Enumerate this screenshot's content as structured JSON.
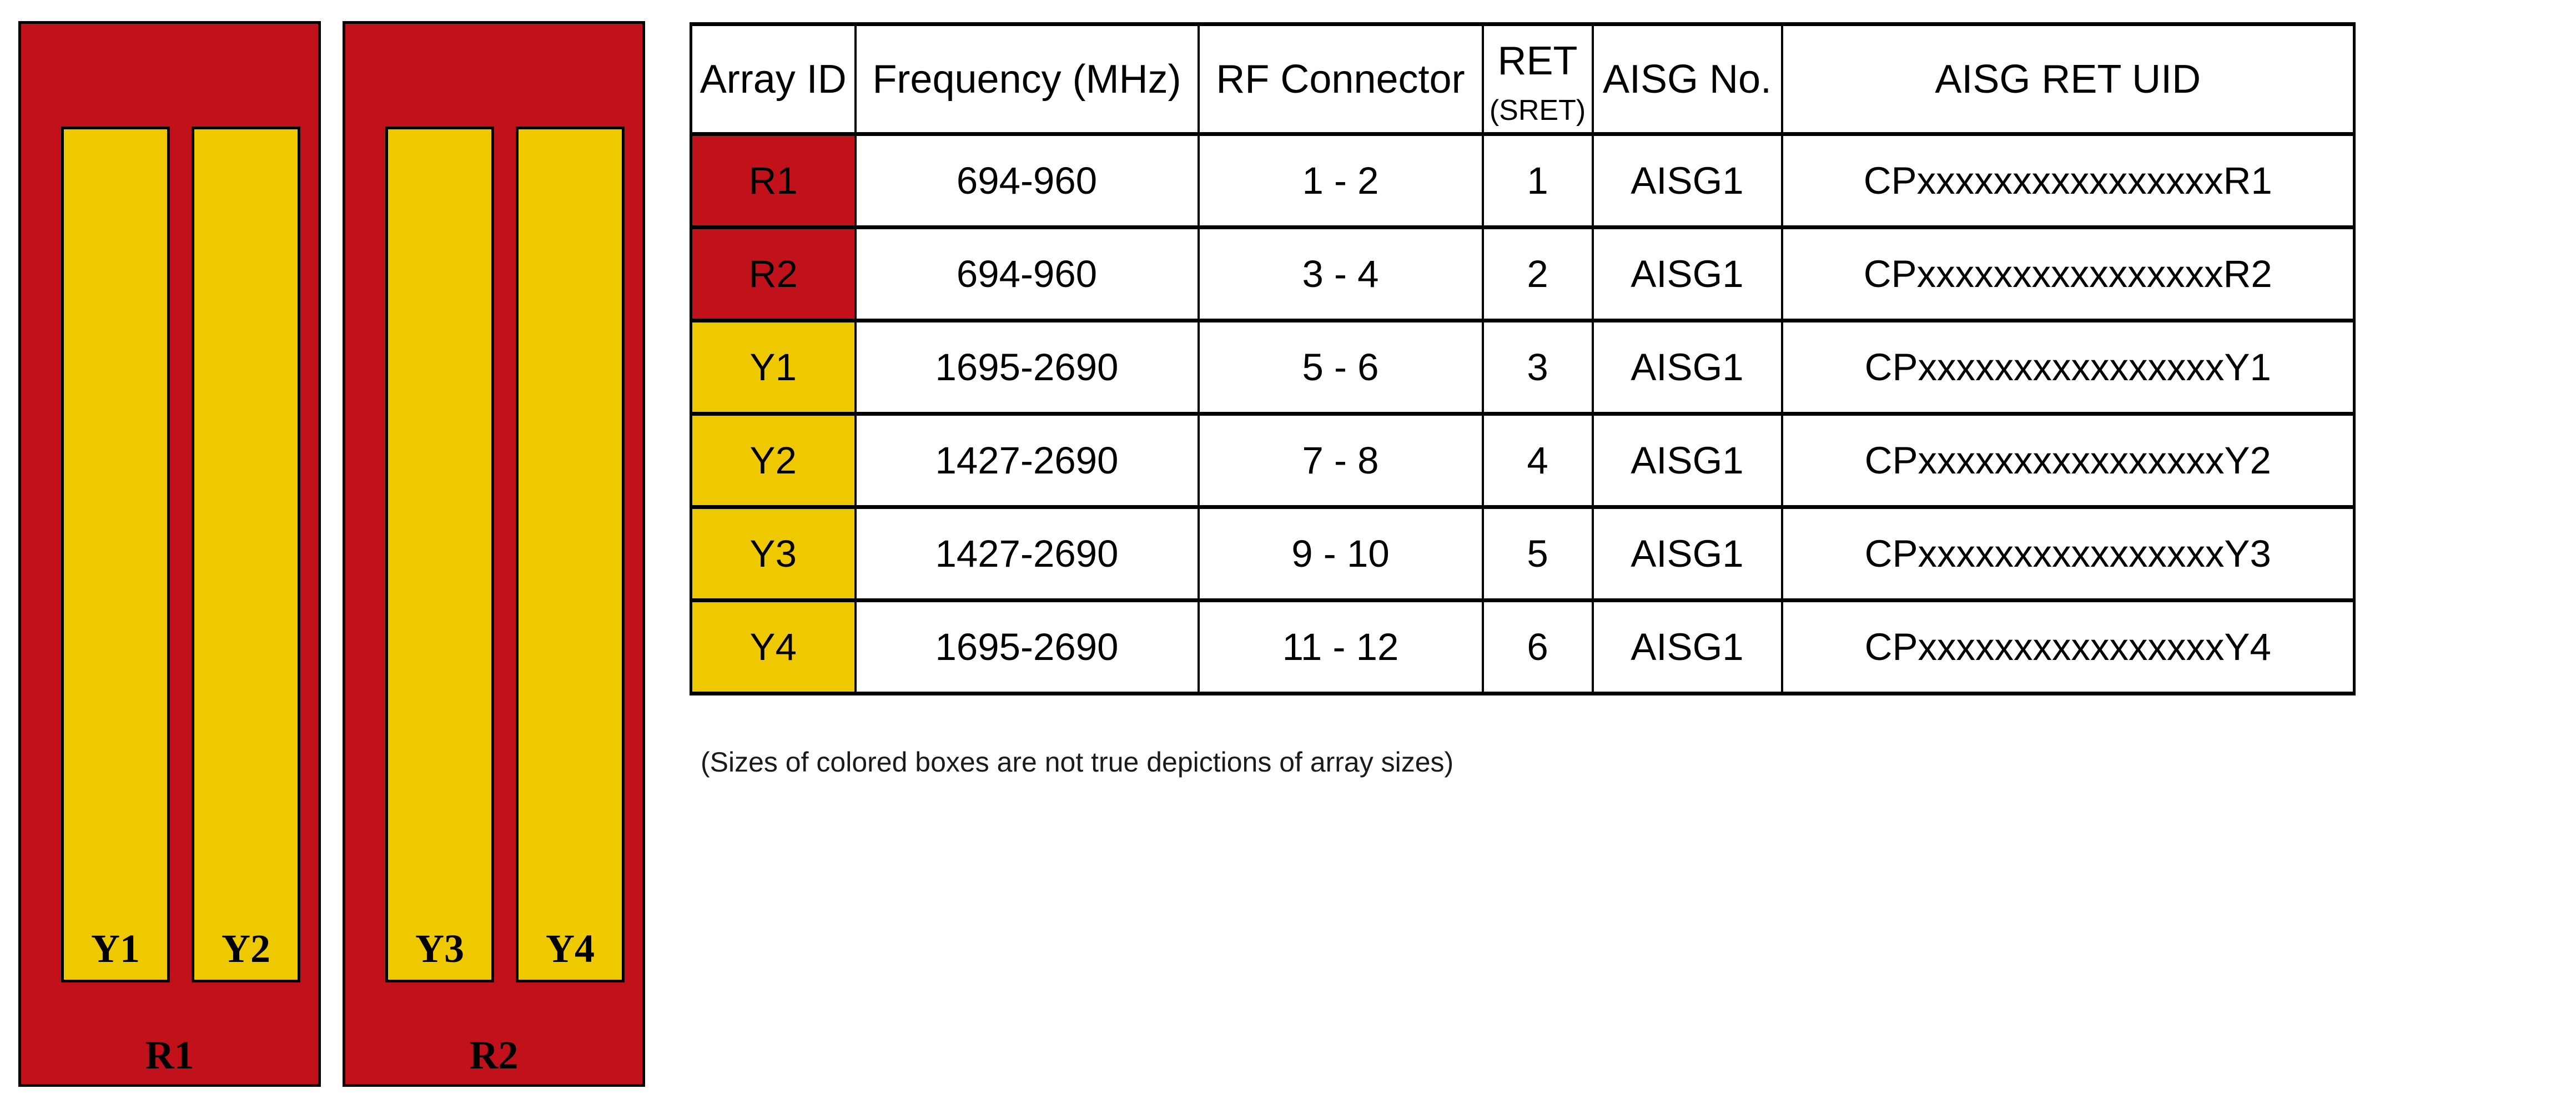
{
  "colors": {
    "red": "#C1121B",
    "yellow": "#EEC900"
  },
  "diagram": {
    "panels": [
      {
        "label": "R1",
        "arrays": [
          {
            "label": "Y1"
          },
          {
            "label": "Y2"
          }
        ]
      },
      {
        "label": "R2",
        "arrays": [
          {
            "label": "Y3"
          },
          {
            "label": "Y4"
          }
        ]
      }
    ]
  },
  "table": {
    "headers": [
      "Array ID",
      "Frequency (MHz)",
      "RF Connector",
      "RET",
      "AISG No.",
      "AISG RET UID"
    ],
    "ret_subheader": "(SRET)",
    "rows": [
      {
        "array_id": "R1",
        "color": "red",
        "frequency": "694-960",
        "rf_connector": "1 - 2",
        "ret": "1",
        "aisg_no": "AISG1",
        "aisg_ret_uid": "CPxxxxxxxxxxxxxxxxR1"
      },
      {
        "array_id": "R2",
        "color": "red",
        "frequency": "694-960",
        "rf_connector": "3 - 4",
        "ret": "2",
        "aisg_no": "AISG1",
        "aisg_ret_uid": "CPxxxxxxxxxxxxxxxxR2"
      },
      {
        "array_id": "Y1",
        "color": "yellow",
        "frequency": "1695-2690",
        "rf_connector": "5 - 6",
        "ret": "3",
        "aisg_no": "AISG1",
        "aisg_ret_uid": "CPxxxxxxxxxxxxxxxxY1"
      },
      {
        "array_id": "Y2",
        "color": "yellow",
        "frequency": "1427-2690",
        "rf_connector": "7 - 8",
        "ret": "4",
        "aisg_no": "AISG1",
        "aisg_ret_uid": "CPxxxxxxxxxxxxxxxxY2"
      },
      {
        "array_id": "Y3",
        "color": "yellow",
        "frequency": "1427-2690",
        "rf_connector": "9 - 10",
        "ret": "5",
        "aisg_no": "AISG1",
        "aisg_ret_uid": "CPxxxxxxxxxxxxxxxxY3"
      },
      {
        "array_id": "Y4",
        "color": "yellow",
        "frequency": "1695-2690",
        "rf_connector": "11 - 12",
        "ret": "6",
        "aisg_no": "AISG1",
        "aisg_ret_uid": "CPxxxxxxxxxxxxxxxxY4"
      }
    ]
  },
  "footnote": "(Sizes of colored boxes are not true depictions of array sizes)"
}
